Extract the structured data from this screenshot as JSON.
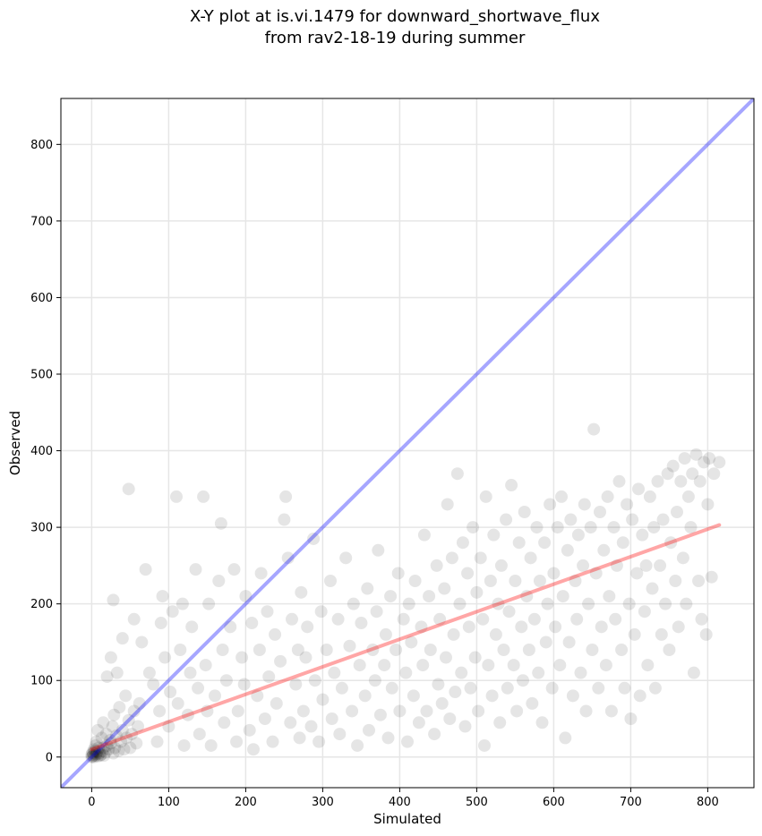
{
  "chart_data": {
    "type": "scatter",
    "title_lines": [
      "X-Y plot at is.vi.1479 for downward_shortwave_flux",
      "from rav2-18-19 during summer"
    ],
    "xlabel": "Simulated",
    "ylabel": "Observed",
    "xlim": [
      -40,
      860
    ],
    "ylim": [
      -40,
      860
    ],
    "x_ticks": [
      0,
      100,
      200,
      300,
      400,
      500,
      600,
      700,
      800
    ],
    "y_ticks": [
      0,
      100,
      200,
      300,
      400,
      500,
      600,
      700,
      800
    ],
    "grid": true,
    "point_color": "#000000",
    "point_alpha": 0.1,
    "lines": [
      {
        "role": "one-to-one",
        "color": "#0000ff",
        "alpha": 0.35,
        "x": [
          -40,
          860
        ],
        "y": [
          -40,
          860
        ]
      },
      {
        "role": "regression-fit",
        "color": "#ff0000",
        "alpha": 0.35,
        "x": [
          0,
          815
        ],
        "y": [
          10,
          303
        ]
      }
    ],
    "points": [
      [
        0,
        0
      ],
      [
        1,
        1
      ],
      [
        2,
        2
      ],
      [
        0,
        3
      ],
      [
        3,
        0
      ],
      [
        2,
        5
      ],
      [
        5,
        2
      ],
      [
        4,
        8
      ],
      [
        1,
        6
      ],
      [
        6,
        4
      ],
      [
        8,
        1
      ],
      [
        3,
        10
      ],
      [
        7,
        7
      ],
      [
        10,
        5
      ],
      [
        12,
        3
      ],
      [
        9,
        12
      ],
      [
        5,
        15
      ],
      [
        14,
        8
      ],
      [
        11,
        2
      ],
      [
        15,
        12
      ],
      [
        6,
        20
      ],
      [
        18,
        6
      ],
      [
        20,
        15
      ],
      [
        16,
        2
      ],
      [
        13,
        25
      ],
      [
        22,
        10
      ],
      [
        25,
        18
      ],
      [
        19,
        30
      ],
      [
        28,
        5
      ],
      [
        24,
        22
      ],
      [
        30,
        12
      ],
      [
        8,
        35
      ],
      [
        27,
        40
      ],
      [
        32,
        28
      ],
      [
        35,
        8
      ],
      [
        15,
        45
      ],
      [
        38,
        20
      ],
      [
        40,
        35
      ],
      [
        29,
        55
      ],
      [
        42,
        10
      ],
      [
        45,
        25
      ],
      [
        48,
        48
      ],
      [
        36,
        65
      ],
      [
        50,
        12
      ],
      [
        52,
        30
      ],
      [
        55,
        60
      ],
      [
        44,
        80
      ],
      [
        58,
        18
      ],
      [
        60,
        40
      ],
      [
        62,
        70
      ],
      [
        20,
        105
      ],
      [
        33,
        110
      ],
      [
        25,
        130
      ],
      [
        40,
        155
      ],
      [
        28,
        205
      ],
      [
        48,
        350
      ],
      [
        55,
        180
      ],
      [
        65,
        150
      ],
      [
        70,
        245
      ],
      [
        75,
        110
      ],
      [
        80,
        95
      ],
      [
        85,
        20
      ],
      [
        88,
        60
      ],
      [
        90,
        175
      ],
      [
        92,
        210
      ],
      [
        95,
        130
      ],
      [
        100,
        40
      ],
      [
        102,
        85
      ],
      [
        105,
        190
      ],
      [
        110,
        340
      ],
      [
        112,
        70
      ],
      [
        115,
        140
      ],
      [
        118,
        200
      ],
      [
        120,
        15
      ],
      [
        125,
        55
      ],
      [
        128,
        110
      ],
      [
        130,
        170
      ],
      [
        135,
        245
      ],
      [
        138,
        90
      ],
      [
        140,
        30
      ],
      [
        145,
        340
      ],
      [
        148,
        120
      ],
      [
        150,
        60
      ],
      [
        152,
        200
      ],
      [
        155,
        15
      ],
      [
        160,
        80
      ],
      [
        165,
        230
      ],
      [
        168,
        305
      ],
      [
        170,
        140
      ],
      [
        172,
        45
      ],
      [
        175,
        100
      ],
      [
        180,
        170
      ],
      [
        185,
        245
      ],
      [
        188,
        20
      ],
      [
        190,
        60
      ],
      [
        195,
        130
      ],
      [
        198,
        95
      ],
      [
        200,
        210
      ],
      [
        205,
        35
      ],
      [
        208,
        175
      ],
      [
        210,
        10
      ],
      [
        215,
        80
      ],
      [
        218,
        140
      ],
      [
        220,
        240
      ],
      [
        225,
        50
      ],
      [
        228,
        190
      ],
      [
        230,
        105
      ],
      [
        235,
        20
      ],
      [
        238,
        160
      ],
      [
        240,
        70
      ],
      [
        245,
        125
      ],
      [
        250,
        310
      ],
      [
        252,
        340
      ],
      [
        255,
        260
      ],
      [
        258,
        45
      ],
      [
        260,
        180
      ],
      [
        265,
        95
      ],
      [
        268,
        140
      ],
      [
        270,
        25
      ],
      [
        272,
        215
      ],
      [
        275,
        60
      ],
      [
        278,
        130
      ],
      [
        280,
        170
      ],
      [
        285,
        40
      ],
      [
        288,
        285
      ],
      [
        290,
        100
      ],
      [
        295,
        20
      ],
      [
        298,
        190
      ],
      [
        300,
        75
      ],
      [
        305,
        140
      ],
      [
        310,
        230
      ],
      [
        312,
        50
      ],
      [
        315,
        110
      ],
      [
        320,
        180
      ],
      [
        322,
        30
      ],
      [
        325,
        90
      ],
      [
        330,
        260
      ],
      [
        335,
        145
      ],
      [
        338,
        60
      ],
      [
        340,
        200
      ],
      [
        345,
        15
      ],
      [
        348,
        120
      ],
      [
        350,
        175
      ],
      [
        355,
        80
      ],
      [
        358,
        220
      ],
      [
        360,
        35
      ],
      [
        365,
        140
      ],
      [
        368,
        100
      ],
      [
        370,
        190
      ],
      [
        372,
        270
      ],
      [
        375,
        55
      ],
      [
        380,
        120
      ],
      [
        382,
        160
      ],
      [
        385,
        25
      ],
      [
        388,
        210
      ],
      [
        390,
        90
      ],
      [
        395,
        140
      ],
      [
        398,
        240
      ],
      [
        400,
        60
      ],
      [
        405,
        180
      ],
      [
        408,
        110
      ],
      [
        410,
        20
      ],
      [
        412,
        200
      ],
      [
        415,
        150
      ],
      [
        418,
        80
      ],
      [
        420,
        230
      ],
      [
        425,
        45
      ],
      [
        428,
        170
      ],
      [
        430,
        120
      ],
      [
        432,
        290
      ],
      [
        435,
        60
      ],
      [
        438,
        210
      ],
      [
        440,
        140
      ],
      [
        445,
        30
      ],
      [
        448,
        250
      ],
      [
        450,
        95
      ],
      [
        452,
        180
      ],
      [
        455,
        70
      ],
      [
        458,
        220
      ],
      [
        460,
        130
      ],
      [
        462,
        330
      ],
      [
        465,
        50
      ],
      [
        468,
        260
      ],
      [
        470,
        160
      ],
      [
        472,
        85
      ],
      [
        475,
        370
      ],
      [
        478,
        200
      ],
      [
        480,
        110
      ],
      [
        482,
        280
      ],
      [
        485,
        40
      ],
      [
        488,
        240
      ],
      [
        490,
        170
      ],
      [
        492,
        90
      ],
      [
        495,
        300
      ],
      [
        498,
        130
      ],
      [
        500,
        215
      ],
      [
        502,
        60
      ],
      [
        505,
        260
      ],
      [
        508,
        180
      ],
      [
        510,
        15
      ],
      [
        512,
        340
      ],
      [
        515,
        120
      ],
      [
        518,
        230
      ],
      [
        520,
        80
      ],
      [
        522,
        290
      ],
      [
        525,
        160
      ],
      [
        528,
        200
      ],
      [
        530,
        45
      ],
      [
        532,
        250
      ],
      [
        535,
        140
      ],
      [
        538,
        310
      ],
      [
        540,
        90
      ],
      [
        542,
        190
      ],
      [
        545,
        355
      ],
      [
        548,
        120
      ],
      [
        550,
        230
      ],
      [
        552,
        60
      ],
      [
        555,
        280
      ],
      [
        558,
        170
      ],
      [
        560,
        100
      ],
      [
        562,
        320
      ],
      [
        565,
        210
      ],
      [
        568,
        140
      ],
      [
        570,
        260
      ],
      [
        572,
        70
      ],
      [
        575,
        180
      ],
      [
        578,
        300
      ],
      [
        580,
        110
      ],
      [
        582,
        230
      ],
      [
        585,
        45
      ],
      [
        588,
        280
      ],
      [
        590,
        150
      ],
      [
        592,
        200
      ],
      [
        595,
        330
      ],
      [
        598,
        90
      ],
      [
        600,
        240
      ],
      [
        602,
        170
      ],
      [
        605,
        300
      ],
      [
        608,
        120
      ],
      [
        610,
        340
      ],
      [
        612,
        210
      ],
      [
        615,
        25
      ],
      [
        618,
        270
      ],
      [
        620,
        150
      ],
      [
        622,
        310
      ],
      [
        625,
        80
      ],
      [
        628,
        230
      ],
      [
        630,
        180
      ],
      [
        632,
        290
      ],
      [
        635,
        110
      ],
      [
        638,
        250
      ],
      [
        640,
        330
      ],
      [
        642,
        60
      ],
      [
        645,
        200
      ],
      [
        648,
        300
      ],
      [
        650,
        140
      ],
      [
        652,
        428
      ],
      [
        655,
        240
      ],
      [
        658,
        90
      ],
      [
        660,
        320
      ],
      [
        662,
        170
      ],
      [
        665,
        270
      ],
      [
        668,
        120
      ],
      [
        670,
        340
      ],
      [
        672,
        210
      ],
      [
        675,
        60
      ],
      [
        678,
        300
      ],
      [
        680,
        180
      ],
      [
        682,
        250
      ],
      [
        685,
        360
      ],
      [
        688,
        140
      ],
      [
        690,
        280
      ],
      [
        692,
        90
      ],
      [
        695,
        330
      ],
      [
        698,
        200
      ],
      [
        700,
        50
      ],
      [
        702,
        310
      ],
      [
        705,
        160
      ],
      [
        708,
        240
      ],
      [
        710,
        350
      ],
      [
        712,
        80
      ],
      [
        715,
        290
      ],
      [
        718,
        190
      ],
      [
        720,
        250
      ],
      [
        722,
        120
      ],
      [
        725,
        340
      ],
      [
        728,
        220
      ],
      [
        730,
        300
      ],
      [
        732,
        90
      ],
      [
        735,
        360
      ],
      [
        738,
        250
      ],
      [
        740,
        160
      ],
      [
        742,
        310
      ],
      [
        745,
        200
      ],
      [
        748,
        370
      ],
      [
        750,
        140
      ],
      [
        752,
        280
      ],
      [
        755,
        380
      ],
      [
        758,
        230
      ],
      [
        760,
        320
      ],
      [
        762,
        170
      ],
      [
        765,
        360
      ],
      [
        768,
        260
      ],
      [
        770,
        390
      ],
      [
        772,
        200
      ],
      [
        775,
        340
      ],
      [
        778,
        300
      ],
      [
        780,
        370
      ],
      [
        782,
        110
      ],
      [
        785,
        395
      ],
      [
        788,
        230
      ],
      [
        790,
        360
      ],
      [
        792,
        180
      ],
      [
        795,
        385
      ],
      [
        798,
        160
      ],
      [
        800,
        330
      ],
      [
        802,
        390
      ],
      [
        805,
        235
      ],
      [
        808,
        370
      ],
      [
        815,
        385
      ]
    ]
  }
}
